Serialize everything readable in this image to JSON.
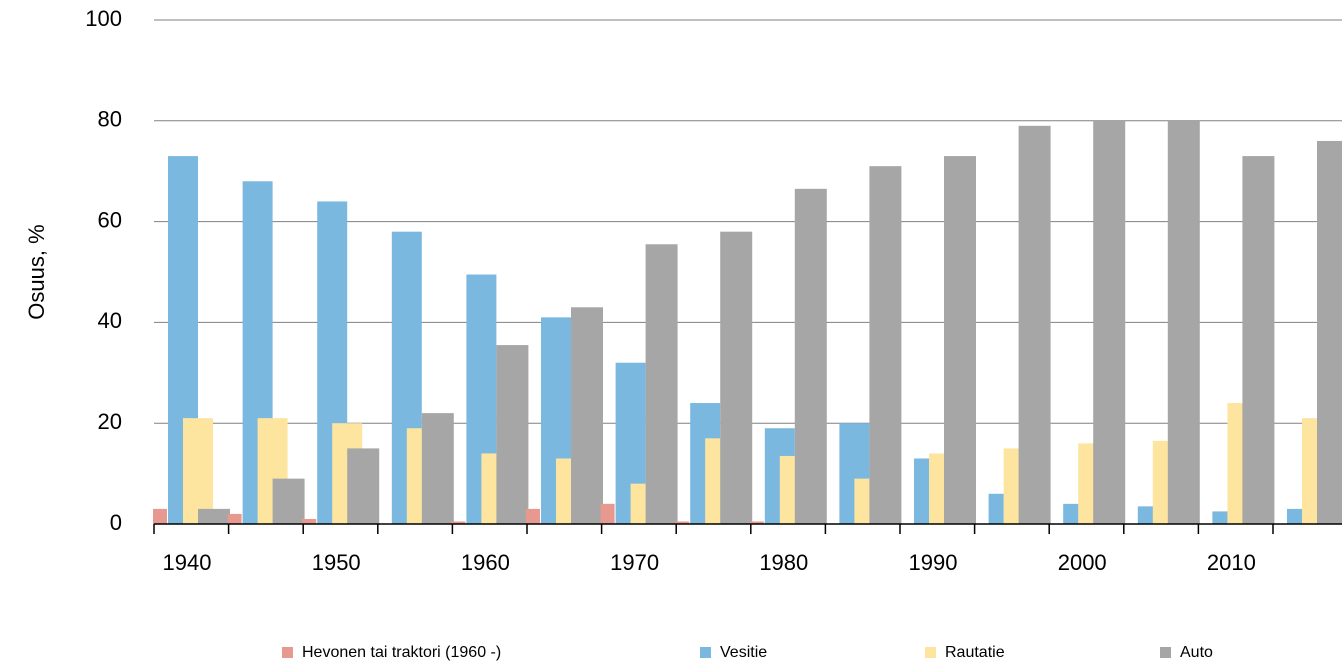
{
  "chart_data": {
    "type": "bar",
    "y_label": "Osuus, %",
    "categories": [
      "1940",
      null,
      "1950",
      null,
      "1960",
      null,
      "1970",
      null,
      "1980",
      null,
      "1990",
      null,
      "2000",
      null,
      "2010",
      null
    ],
    "series": [
      {
        "name": "Hevonen tai traktori (1960 -)",
        "color": "#e8998f",
        "values": [
          3,
          2,
          1,
          0,
          0.5,
          3,
          4,
          0.5,
          0.5,
          0,
          0,
          0,
          0,
          0,
          0,
          0
        ]
      },
      {
        "name": "Vesitie",
        "color": "#7ab8e0",
        "values": [
          73,
          68,
          64,
          58,
          49.5,
          41,
          32,
          24,
          19,
          20,
          13,
          6,
          4,
          3.5,
          2.5,
          3
        ]
      },
      {
        "name": "Rautatie",
        "color": "#fde59f",
        "values": [
          21,
          21,
          20,
          19,
          14,
          13,
          8,
          17,
          13.5,
          9,
          14,
          15,
          16,
          16.5,
          24,
          21
        ]
      },
      {
        "name": "Auto",
        "color": "#a6a6a6",
        "values": [
          3,
          9,
          15,
          22,
          35.5,
          43,
          55.5,
          58,
          66.5,
          71,
          73,
          79,
          80,
          80,
          73,
          76
        ]
      }
    ],
    "ylim": [
      0,
      100
    ],
    "yticks": [
      0,
      20,
      40,
      60,
      80,
      100
    ],
    "grid": true
  }
}
